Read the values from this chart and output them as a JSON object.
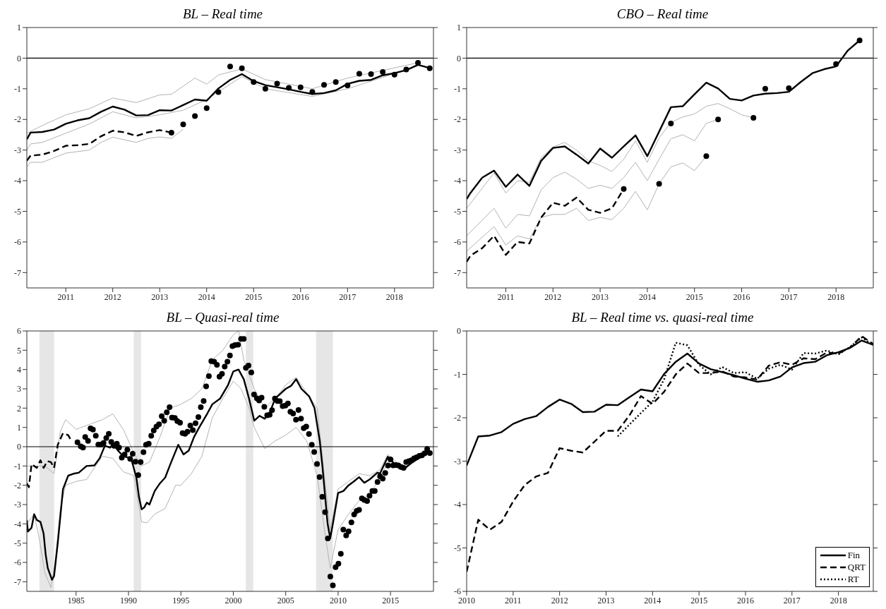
{
  "chart_data": [
    {
      "type": "line",
      "title": "BL – Real time",
      "xlim": [
        2010.17,
        2018.83
      ],
      "xticks": [
        2011,
        2012,
        2013,
        2014,
        2015,
        2016,
        2017,
        2018
      ],
      "ylim": [
        -7.5,
        1
      ],
      "yticks": [
        -7,
        -6,
        -5,
        -4,
        -3,
        -2,
        -1,
        0,
        1
      ],
      "ref_lines": [
        {
          "axis": "y",
          "value": 0,
          "color": "#000000"
        }
      ],
      "series": [
        {
          "type": "line",
          "color": "#b3b3b3",
          "x": [
            2010.17,
            2010.5,
            2011,
            2011.5,
            2012,
            2012.5,
            2013,
            2013.25,
            2013.75,
            2014,
            2014.25,
            2014.75,
            2015.25,
            2016.25,
            2017,
            2018.5
          ],
          "values": [
            -2.45,
            -2.2,
            -1.85,
            -1.65,
            -1.3,
            -1.45,
            -1.2,
            -1.18,
            -0.65,
            -0.85,
            -0.55,
            -0.35,
            -0.7,
            -1.0,
            -0.65,
            -0.15
          ]
        },
        {
          "type": "line",
          "color": "#b3b3b3",
          "x": [
            2010.17,
            2010.25,
            2010.5,
            2011,
            2011.5,
            2012,
            2012.5,
            2013,
            2013.5,
            2014,
            2014.75,
            2015.25,
            2016.25,
            2017,
            2018.5
          ],
          "values": [
            -3.0,
            -2.8,
            -2.75,
            -2.45,
            -2.15,
            -1.75,
            -1.95,
            -1.85,
            -1.7,
            -1.35,
            -0.6,
            -1.0,
            -1.25,
            -1.0,
            -0.25
          ]
        },
        {
          "type": "line",
          "color": "#b3b3b3",
          "x": [
            2010.17,
            2010.25,
            2010.5,
            2011,
            2011.5,
            2011.75,
            2012,
            2012.5,
            2012.75,
            2013,
            2013.25,
            2013.5
          ],
          "values": [
            -3.55,
            -3.4,
            -3.4,
            -3.1,
            -3.0,
            -2.75,
            -2.58,
            -2.75,
            -2.62,
            -2.57,
            -2.62,
            -2.32
          ]
        },
        {
          "type": "line",
          "color": "#000000",
          "line_style": "solid",
          "x": [
            2010.17,
            2010.25,
            2010.5,
            2010.75,
            2011,
            2011.25,
            2011.5,
            2011.75,
            2012,
            2012.25,
            2012.5,
            2012.75,
            2013,
            2013.25,
            2013.5,
            2013.75,
            2014,
            2014.25,
            2014.5,
            2014.75,
            2015,
            2015.25,
            2015.5,
            2015.75,
            2016,
            2016.25,
            2016.5,
            2016.75,
            2017,
            2017.25,
            2017.5,
            2017.75,
            2018,
            2018.25,
            2018.5,
            2018.75
          ],
          "values": [
            -2.65,
            -2.43,
            -2.41,
            -2.33,
            -2.14,
            -2.03,
            -1.96,
            -1.75,
            -1.58,
            -1.68,
            -1.87,
            -1.86,
            -1.7,
            -1.71,
            -1.53,
            -1.35,
            -1.39,
            -0.99,
            -0.71,
            -0.52,
            -0.75,
            -0.88,
            -0.95,
            -1.02,
            -1.1,
            -1.17,
            -1.14,
            -1.05,
            -0.84,
            -0.74,
            -0.71,
            -0.56,
            -0.49,
            -0.39,
            -0.22,
            -0.32
          ]
        },
        {
          "type": "line",
          "color": "#000000",
          "line_style": "dashed",
          "x": [
            2010.17,
            2010.25,
            2010.5,
            2010.75,
            2011,
            2011.25,
            2011.5,
            2011.75,
            2012,
            2012.25,
            2012.5,
            2012.75,
            2013,
            2013.25
          ],
          "values": [
            -3.35,
            -3.18,
            -3.15,
            -3.03,
            -2.86,
            -2.84,
            -2.8,
            -2.55,
            -2.37,
            -2.42,
            -2.54,
            -2.42,
            -2.35,
            -2.43
          ]
        },
        {
          "type": "scatter",
          "color": "#000000",
          "marker": "circle",
          "x": [
            2013.25,
            2013.5,
            2013.75,
            2014,
            2014.25,
            2014.5,
            2014.75,
            2015,
            2015.25,
            2015.5,
            2015.75,
            2016,
            2016.25,
            2016.5,
            2016.75,
            2017,
            2017.25,
            2017.5,
            2017.75,
            2018,
            2018.25,
            2018.5,
            2018.75
          ],
          "values": [
            -2.43,
            -2.16,
            -1.89,
            -1.63,
            -1.11,
            -0.27,
            -0.33,
            -0.78,
            -1.0,
            -0.83,
            -0.97,
            -0.95,
            -1.1,
            -0.87,
            -0.78,
            -0.89,
            -0.51,
            -0.52,
            -0.45,
            -0.54,
            -0.37,
            -0.15,
            -0.33
          ]
        }
      ]
    },
    {
      "type": "line",
      "title": "CBO – Real time",
      "xlim": [
        2010.17,
        2018.79
      ],
      "xticks": [
        2011,
        2012,
        2013,
        2014,
        2015,
        2016,
        2017,
        2018
      ],
      "ylim": [
        -7.5,
        1
      ],
      "yticks": [
        -7,
        -6,
        -5,
        -4,
        -3,
        -2,
        -1,
        0,
        1
      ],
      "ref_lines": [
        {
          "axis": "y",
          "value": 0,
          "color": "#000000"
        }
      ],
      "series": [
        {
          "type": "line",
          "color": "#b3b3b3",
          "x": [
            2010.17,
            2010.75,
            2011,
            2011.25,
            2011.5,
            2011.75,
            2012,
            2012.25,
            2012.5,
            2012.75,
            2013,
            2013.25,
            2013.5,
            2013.75,
            2014,
            2014.25,
            2014.5,
            2014.75,
            2015,
            2015.25
          ],
          "values": [
            -6.3,
            -5.5,
            -6.1,
            -5.8,
            -5.9,
            -5.2,
            -5.1,
            -5.1,
            -4.9,
            -5.3,
            -5.2,
            -5.27,
            -4.9,
            -4.35,
            -4.95,
            -4.1,
            -3.55,
            -3.42,
            -3.67,
            -3.2
          ]
        },
        {
          "type": "line",
          "color": "#b3b3b3",
          "x": [
            2010.17,
            2010.75,
            2011,
            2011.25,
            2011.5,
            2011.75,
            2012,
            2012.25,
            2012.5,
            2012.75,
            2013,
            2013.25,
            2013.5,
            2013.75,
            2014,
            2014.25,
            2014.5,
            2014.75,
            2015,
            2015.25,
            2015.5
          ],
          "values": [
            -5.8,
            -4.9,
            -5.55,
            -5.1,
            -5.15,
            -4.3,
            -3.9,
            -3.72,
            -3.95,
            -4.25,
            -4.15,
            -4.25,
            -3.9,
            -3.4,
            -4.0,
            -3.3,
            -2.63,
            -2.5,
            -2.7,
            -2.13,
            -2.0
          ]
        },
        {
          "type": "line",
          "color": "#b3b3b3",
          "x": [
            2010.17,
            2010.75,
            2011,
            2011.25,
            2011.5,
            2011.75,
            2012,
            2012.25,
            2012.5,
            2012.75,
            2013,
            2013.25,
            2013.5,
            2013.75,
            2014,
            2014.25,
            2014.5,
            2014.75,
            2015,
            2015.25,
            2015.5,
            2015.75,
            2016,
            2016.25
          ],
          "values": [
            -4.9,
            -3.75,
            -4.4,
            -4.0,
            -4.05,
            -3.25,
            -2.9,
            -2.75,
            -3.0,
            -3.35,
            -3.5,
            -3.7,
            -3.3,
            -2.7,
            -3.4,
            -2.6,
            -2.1,
            -1.92,
            -1.82,
            -1.57,
            -1.48,
            -1.65,
            -1.85,
            -1.95
          ]
        },
        {
          "type": "line",
          "color": "#000000",
          "line_style": "solid",
          "x": [
            2010.17,
            2010.25,
            2010.5,
            2010.75,
            2011,
            2011.25,
            2011.5,
            2011.75,
            2012,
            2012.25,
            2012.5,
            2012.75,
            2013,
            2013.25,
            2013.5,
            2013.75,
            2014,
            2014.25,
            2014.5,
            2014.75,
            2015,
            2015.25,
            2015.5,
            2015.75,
            2016,
            2016.25,
            2016.5,
            2016.75,
            2017,
            2017.25,
            2017.5,
            2017.75,
            2018,
            2018.25,
            2018.5
          ],
          "values": [
            -4.6,
            -4.4,
            -3.9,
            -3.67,
            -4.2,
            -3.8,
            -4.17,
            -3.35,
            -2.93,
            -2.88,
            -3.15,
            -3.44,
            -2.95,
            -3.25,
            -2.88,
            -2.52,
            -3.2,
            -2.4,
            -1.6,
            -1.57,
            -1.18,
            -0.8,
            -0.99,
            -1.33,
            -1.38,
            -1.22,
            -1.16,
            -1.14,
            -1.1,
            -0.78,
            -0.49,
            -0.36,
            -0.27,
            0.25,
            0.58
          ]
        },
        {
          "type": "line",
          "color": "#000000",
          "line_style": "dashed",
          "x": [
            2010.17,
            2010.25,
            2010.5,
            2010.75,
            2011,
            2011.25,
            2011.5,
            2011.75,
            2012,
            2012.25,
            2012.5,
            2012.75,
            2013,
            2013.25,
            2013.5
          ],
          "values": [
            -6.65,
            -6.45,
            -6.2,
            -5.8,
            -6.42,
            -6.0,
            -6.05,
            -5.2,
            -4.72,
            -4.82,
            -4.55,
            -4.95,
            -5.05,
            -4.9,
            -4.27
          ]
        },
        {
          "type": "scatter",
          "color": "#000000",
          "marker": "circle",
          "x": [
            2013.5,
            2014.25,
            2014.5,
            2015.25,
            2015.5,
            2016.25,
            2016.5,
            2017,
            2018,
            2018.5
          ],
          "values": [
            -4.27,
            -4.1,
            -2.13,
            -3.2,
            -2.0,
            -1.95,
            -1.0,
            -0.98,
            -0.19,
            0.58
          ]
        }
      ]
    },
    {
      "type": "line",
      "title": "BL – Quasi-real time",
      "xlim": [
        1980.3,
        2019.1
      ],
      "xticks": [
        1985,
        1990,
        1995,
        2000,
        2005,
        2010,
        2015
      ],
      "ylim": [
        -7.5,
        6
      ],
      "yticks": [
        -7,
        -6,
        -5,
        -4,
        -3,
        -2,
        -1,
        0,
        1,
        2,
        3,
        4,
        5,
        6
      ],
      "bands": [
        {
          "axis": "x",
          "from": 1981.5,
          "to": 1982.9,
          "color": "#e6e6e6"
        },
        {
          "axis": "x",
          "from": 1990.5,
          "to": 1991.2,
          "color": "#e6e6e6"
        },
        {
          "axis": "x",
          "from": 2001.2,
          "to": 2001.9,
          "color": "#e6e6e6"
        },
        {
          "axis": "x",
          "from": 2007.9,
          "to": 2009.5,
          "color": "#e6e6e6"
        }
      ],
      "ref_lines": [
        {
          "axis": "y",
          "value": 0,
          "color": "#000000"
        }
      ],
      "series": [
        {
          "type": "line",
          "color": "#b3b3b3",
          "x": [
            1980.3,
            1981,
            1982,
            1982.9,
            1983.5,
            1984,
            1985,
            1986.5,
            1987.5,
            1988.5,
            1989.5,
            1990.5,
            1991.2,
            1992,
            1993,
            1994,
            1995,
            1996,
            1997,
            1998,
            1999,
            2000,
            2000.5,
            2001,
            2002,
            2003,
            2004,
            2005,
            2006,
            2007,
            2008,
            2008.5,
            2009.25,
            2010,
            2011,
            2012,
            2013,
            2014,
            2014.75,
            2016,
            2018.5
          ],
          "values": [
            -1.0,
            -1.0,
            -1.0,
            -1.4,
            0.8,
            1.4,
            0.9,
            1.2,
            1.4,
            1.7,
            0.9,
            -0.3,
            -1.0,
            -0.8,
            0.5,
            2.0,
            2.2,
            2.5,
            3.0,
            4.5,
            5.0,
            5.8,
            6.0,
            4.5,
            3.0,
            2.0,
            2.5,
            3.2,
            3.6,
            2.8,
            2.0,
            -0.5,
            -4.3,
            -2.2,
            -1.8,
            -1.4,
            -1.5,
            -1.2,
            -0.4,
            -1.0,
            -0.12
          ]
        },
        {
          "type": "line",
          "color": "#b3b3b3",
          "x": [
            1980.3,
            1981,
            1981.5,
            1982,
            1982.6,
            1983,
            1983.5,
            1984,
            1985,
            1986,
            1987.5,
            1988.5,
            1989.5,
            1990.5,
            1991.25,
            1991.75,
            1992.5,
            1993.5,
            1994.5,
            1995,
            1996,
            1997,
            1998,
            1999,
            2000,
            2000.75,
            2001.5,
            2002,
            2003,
            2004,
            2005,
            2006,
            2007,
            2008,
            2008.75,
            2009.25,
            2010,
            2011,
            2012,
            2013,
            2014,
            2014.75,
            2016,
            2018.5
          ],
          "values": [
            -4.0,
            -3.5,
            -4.8,
            -6.5,
            -7.3,
            -6.0,
            -3.2,
            -2.0,
            -1.8,
            -1.7,
            -0.5,
            -0.6,
            -1.3,
            -1.5,
            -3.9,
            -3.95,
            -3.5,
            -3.2,
            -2.0,
            -2.0,
            -1.4,
            -0.5,
            1.5,
            2.5,
            3.4,
            3.0,
            2.0,
            1.0,
            -0.1,
            0.3,
            0.6,
            1.0,
            0.3,
            -1.5,
            -4.5,
            -6.3,
            -4.3,
            -3.5,
            -2.8,
            -2.5,
            -1.6,
            -0.8,
            -1.2,
            -0.25
          ]
        },
        {
          "type": "line",
          "color": "#000000",
          "line_style": "solid",
          "x": [
            1980.3,
            1980.4,
            1980.75,
            1981,
            1981.25,
            1981.6,
            1981.9,
            1982.1,
            1982.3,
            1982.7,
            1982.9,
            1983.25,
            1983.75,
            1984.25,
            1984.75,
            1985.25,
            1986,
            1986.75,
            1987.25,
            1987.75,
            1988.25,
            1988.5,
            1989,
            1989.5,
            1990.25,
            1990.75,
            1991,
            1991.25,
            1991.5,
            1991.75,
            1992,
            1992.5,
            1993,
            1993.5,
            1994,
            1994.75,
            1995.25,
            1995.75,
            1996.25,
            1996.75,
            1997.5,
            1998,
            1998.75,
            1999.5,
            2000,
            2000.5,
            2001,
            2001.5,
            2002,
            2002.5,
            2003,
            2003.5,
            2004,
            2004.5,
            2005,
            2005.5,
            2006,
            2006.5,
            2007.25,
            2007.75,
            2008.25,
            2008.5,
            2008.75,
            2009,
            2009.25,
            2009.5,
            2010,
            2010.5,
            2011,
            2011.5,
            2012,
            2012.5,
            2013,
            2013.75,
            2014,
            2014.75,
            2015.5,
            2016.25,
            2017,
            2018,
            2018.5,
            2018.75
          ],
          "values": [
            -3.8,
            -4.4,
            -4.2,
            -3.5,
            -3.8,
            -3.9,
            -4.5,
            -5.6,
            -6.3,
            -6.9,
            -6.7,
            -5.0,
            -2.2,
            -1.5,
            -1.4,
            -1.35,
            -1.0,
            -0.97,
            -0.6,
            0.05,
            -0.05,
            0.15,
            -0.2,
            -0.5,
            -0.6,
            -1.6,
            -2.6,
            -3.25,
            -3.15,
            -2.9,
            -3.0,
            -2.3,
            -1.9,
            -1.6,
            -0.9,
            0.1,
            -0.4,
            -0.2,
            0.5,
            1.0,
            1.7,
            2.2,
            2.5,
            3.2,
            3.9,
            4.0,
            3.5,
            2.5,
            1.35,
            1.6,
            1.45,
            1.8,
            2.5,
            2.75,
            3.0,
            3.15,
            3.5,
            3.0,
            2.6,
            2.0,
            0.3,
            -1.0,
            -2.5,
            -4.0,
            -4.75,
            -4.0,
            -2.4,
            -2.3,
            -2.0,
            -1.8,
            -1.58,
            -1.87,
            -1.7,
            -1.35,
            -1.39,
            -0.52,
            -0.95,
            -1.17,
            -0.84,
            -0.49,
            -0.22,
            -0.32
          ]
        },
        {
          "type": "line",
          "color": "#000000",
          "line_style": "dashed",
          "x": [
            1980.3,
            1980.5,
            1980.75,
            1981.25,
            1981.6,
            1981.9,
            1982.25,
            1982.6,
            1982.9,
            1983.25,
            1983.75,
            1984.25,
            1984.5
          ],
          "values": [
            -1.9,
            -2.1,
            -0.9,
            -1.1,
            -0.7,
            -1.1,
            -0.75,
            -0.8,
            -1.1,
            0.1,
            0.7,
            0.6,
            0.35
          ]
        },
        {
          "type": "scatter",
          "color": "#000000",
          "marker": "circle",
          "x": [
            1985.13,
            1985.45,
            1985.66,
            1985.87,
            1986.14,
            1986.38,
            1986.61,
            1986.88,
            1987.12,
            1987.38,
            1987.62,
            1987.88,
            1988.12,
            1988.36,
            1988.62,
            1988.89,
            1989.1,
            1989.36,
            1989.63,
            1989.89,
            1990.16,
            1990.4,
            1990.66,
            1990.93,
            1991.16,
            1991.43,
            1991.67,
            1991.93,
            1992.17,
            1992.41,
            1992.67,
            1992.91,
            1993.17,
            1993.41,
            1993.65,
            1993.92,
            1994.15,
            1994.42,
            1994.66,
            1994.92,
            1995.16,
            1995.4,
            1995.63,
            1995.9,
            1996.14,
            1996.4,
            1996.67,
            1996.9,
            1997.17,
            1997.41,
            1997.67,
            1997.9,
            1998.17,
            1998.44,
            1998.68,
            1998.92,
            1999.18,
            1999.44,
            1999.68,
            1999.92,
            2000.16,
            2000.45,
            2000.74,
            2001.0,
            2001.2,
            2001.45,
            2001.72,
            2001.98,
            2002.25,
            2002.46,
            2002.7,
            2002.96,
            2003.23,
            2003.47,
            2003.7,
            2003.97,
            2004.21,
            2004.44,
            2004.71,
            2004.97,
            2005.21,
            2005.45,
            2005.71,
            2005.98,
            2006.22,
            2006.46,
            2006.72,
            2006.96,
            2007.22,
            2007.49,
            2007.72,
            2007.99,
            2008.23,
            2008.49,
            2008.76,
            2009.02,
            2009.26,
            2009.5,
            2009.76,
            2010.03,
            2010.26,
            2010.5,
            2010.77,
            2011.0,
            2011.27,
            2011.53,
            2011.77,
            2012.0,
            2012.27,
            2012.5,
            2012.77,
            2013.0,
            2013.27,
            2013.5,
            2013.76,
            2014.0,
            2014.26,
            2014.5,
            2014.76,
            2015.0,
            2015.25,
            2015.5,
            2015.75,
            2016.0,
            2016.25,
            2016.5,
            2016.75,
            2017.0,
            2017.25,
            2017.5,
            2017.75,
            2018.0,
            2018.25,
            2018.5,
            2018.75
          ],
          "values": [
            0.23,
            0.02,
            -0.05,
            0.5,
            0.3,
            0.95,
            0.89,
            0.57,
            0.11,
            0.11,
            0.19,
            0.45,
            0.67,
            0.25,
            0.05,
            0.16,
            -0.05,
            -0.57,
            -0.4,
            -0.16,
            -0.63,
            -0.37,
            -0.78,
            -1.47,
            -0.8,
            -0.28,
            0.1,
            0.16,
            0.57,
            0.84,
            1.04,
            1.16,
            1.58,
            1.34,
            1.78,
            2.05,
            1.51,
            1.49,
            1.33,
            1.24,
            0.7,
            0.67,
            0.78,
            1.1,
            0.86,
            1.22,
            1.54,
            2.05,
            2.37,
            3.13,
            3.66,
            4.44,
            4.41,
            4.24,
            3.63,
            3.78,
            4.15,
            4.41,
            4.73,
            5.21,
            5.27,
            5.29,
            5.59,
            5.59,
            4.09,
            4.21,
            3.85,
            2.71,
            2.51,
            2.4,
            2.54,
            2.07,
            1.63,
            1.66,
            1.89,
            2.5,
            2.37,
            2.36,
            2.1,
            2.13,
            2.24,
            1.81,
            1.72,
            1.4,
            1.9,
            1.45,
            0.96,
            1.04,
            0.66,
            0.1,
            -0.27,
            -0.9,
            -1.57,
            -2.6,
            -3.39,
            -4.76,
            -6.73,
            -7.19,
            -6.25,
            -6.06,
            -5.55,
            -4.3,
            -4.6,
            -4.39,
            -3.92,
            -3.51,
            -3.33,
            -3.27,
            -2.68,
            -2.76,
            -2.82,
            -2.54,
            -2.3,
            -2.3,
            -1.83,
            -1.54,
            -1.66,
            -1.36,
            -0.98,
            -0.66,
            -0.97,
            -0.95,
            -0.97,
            -1.05,
            -1.1,
            -0.8,
            -0.75,
            -0.7,
            -0.6,
            -0.55,
            -0.48,
            -0.45,
            -0.35,
            -0.12,
            -0.33
          ]
        }
      ]
    },
    {
      "type": "line",
      "title": "BL – Real time vs. quasi-real time",
      "xlim": [
        2010,
        2018.75
      ],
      "xticks": [
        2010,
        2011,
        2012,
        2013,
        2014,
        2015,
        2016,
        2017,
        2018
      ],
      "ylim": [
        -6,
        0
      ],
      "yticks": [
        -6,
        -5,
        -4,
        -3,
        -2,
        -1,
        0
      ],
      "legend": "bottom right",
      "series": [
        {
          "type": "line",
          "name": "Fin",
          "color": "#000000",
          "line_style": "solid",
          "x": [
            2010,
            2010.25,
            2010.5,
            2010.75,
            2011,
            2011.25,
            2011.5,
            2011.75,
            2012,
            2012.25,
            2012.5,
            2012.75,
            2013,
            2013.25,
            2013.5,
            2013.75,
            2014,
            2014.25,
            2014.5,
            2014.75,
            2015,
            2015.25,
            2015.5,
            2015.75,
            2016,
            2016.25,
            2016.5,
            2016.75,
            2017,
            2017.25,
            2017.5,
            2017.75,
            2018,
            2018.25,
            2018.5,
            2018.75
          ],
          "values": [
            -3.1,
            -2.43,
            -2.41,
            -2.33,
            -2.14,
            -2.03,
            -1.96,
            -1.75,
            -1.58,
            -1.68,
            -1.87,
            -1.86,
            -1.7,
            -1.71,
            -1.53,
            -1.35,
            -1.39,
            -0.99,
            -0.71,
            -0.52,
            -0.75,
            -0.88,
            -0.95,
            -1.02,
            -1.1,
            -1.17,
            -1.14,
            -1.05,
            -0.84,
            -0.74,
            -0.71,
            -0.56,
            -0.49,
            -0.39,
            -0.22,
            -0.32
          ]
        },
        {
          "type": "line",
          "name": "QRT",
          "color": "#000000",
          "line_style": "dashed",
          "x": [
            2010,
            2010.25,
            2010.5,
            2010.75,
            2011,
            2011.25,
            2011.5,
            2011.75,
            2012,
            2012.25,
            2012.5,
            2012.75,
            2013,
            2013.25,
            2013.5,
            2013.75,
            2014,
            2014.25,
            2014.5,
            2014.75,
            2015,
            2015.25,
            2015.5,
            2015.75,
            2016,
            2016.25,
            2016.5,
            2016.75,
            2017,
            2017.25,
            2017.5,
            2017.75,
            2018,
            2018.25,
            2018.5,
            2018.75
          ],
          "values": [
            -5.55,
            -4.35,
            -4.58,
            -4.4,
            -3.93,
            -3.55,
            -3.35,
            -3.27,
            -2.7,
            -2.76,
            -2.8,
            -2.55,
            -2.3,
            -2.3,
            -1.95,
            -1.5,
            -1.68,
            -1.4,
            -1.0,
            -0.75,
            -0.97,
            -0.97,
            -0.93,
            -1.05,
            -1.07,
            -1.12,
            -0.8,
            -0.72,
            -0.78,
            -0.63,
            -0.65,
            -0.5,
            -0.52,
            -0.38,
            -0.12,
            -0.3
          ]
        },
        {
          "type": "line",
          "name": "RT",
          "color": "#000000",
          "line_style": "dotted",
          "x": [
            2013.25,
            2013.5,
            2013.75,
            2014,
            2014.25,
            2014.5,
            2014.75,
            2015,
            2015.25,
            2015.5,
            2015.75,
            2016,
            2016.25,
            2016.5,
            2016.75,
            2017,
            2017.25,
            2017.5,
            2017.75,
            2018,
            2018.25,
            2018.5,
            2018.75
          ],
          "values": [
            -2.43,
            -2.16,
            -1.89,
            -1.63,
            -1.11,
            -0.27,
            -0.33,
            -0.78,
            -1.0,
            -0.83,
            -0.97,
            -0.95,
            -1.1,
            -0.87,
            -0.78,
            -0.89,
            -0.51,
            -0.52,
            -0.45,
            -0.54,
            -0.37,
            -0.15,
            -0.33
          ]
        }
      ]
    }
  ]
}
